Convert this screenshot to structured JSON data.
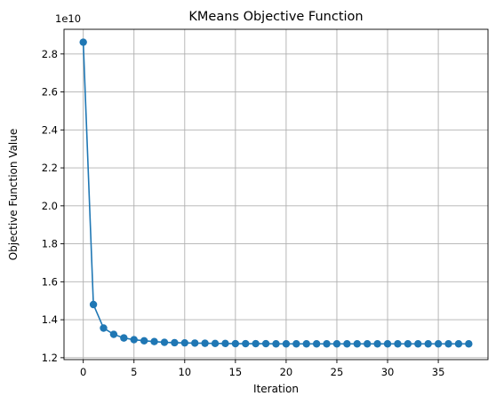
{
  "chart_data": {
    "type": "line",
    "title": "KMeans Objective Function",
    "xlabel": "Iteration",
    "ylabel": "Objective Function Value",
    "y_offset_label": "1e10",
    "xlim": [
      -1.9,
      39.9
    ],
    "ylim": [
      1.19,
      2.93
    ],
    "xticks": [
      0,
      5,
      10,
      15,
      20,
      25,
      30,
      35
    ],
    "xtick_labels": [
      "0",
      "5",
      "10",
      "15",
      "20",
      "25",
      "30",
      "35"
    ],
    "yticks": [
      1.2,
      1.4,
      1.6,
      1.8,
      2.0,
      2.2,
      2.4,
      2.6,
      2.8
    ],
    "ytick_labels": [
      "1.2",
      "1.4",
      "1.6",
      "1.8",
      "2.0",
      "2.2",
      "2.4",
      "2.6",
      "2.8"
    ],
    "grid": true,
    "color": "#1f77b4",
    "marker": "circle",
    "x": [
      0,
      1,
      2,
      3,
      4,
      5,
      6,
      7,
      8,
      9,
      10,
      11,
      12,
      13,
      14,
      15,
      16,
      17,
      18,
      19,
      20,
      21,
      22,
      23,
      24,
      25,
      26,
      27,
      28,
      29,
      30,
      31,
      32,
      33,
      34,
      35,
      36,
      37,
      38
    ],
    "series": [
      {
        "values": [
          2.862,
          1.48,
          1.356,
          1.323,
          1.304,
          1.295,
          1.289,
          1.285,
          1.281,
          1.279,
          1.278,
          1.277,
          1.276,
          1.275,
          1.275,
          1.274,
          1.274,
          1.274,
          1.274,
          1.273,
          1.273,
          1.273,
          1.273,
          1.273,
          1.273,
          1.273,
          1.273,
          1.273,
          1.273,
          1.273,
          1.273,
          1.273,
          1.273,
          1.273,
          1.273,
          1.273,
          1.273,
          1.273,
          1.273
        ]
      }
    ]
  }
}
